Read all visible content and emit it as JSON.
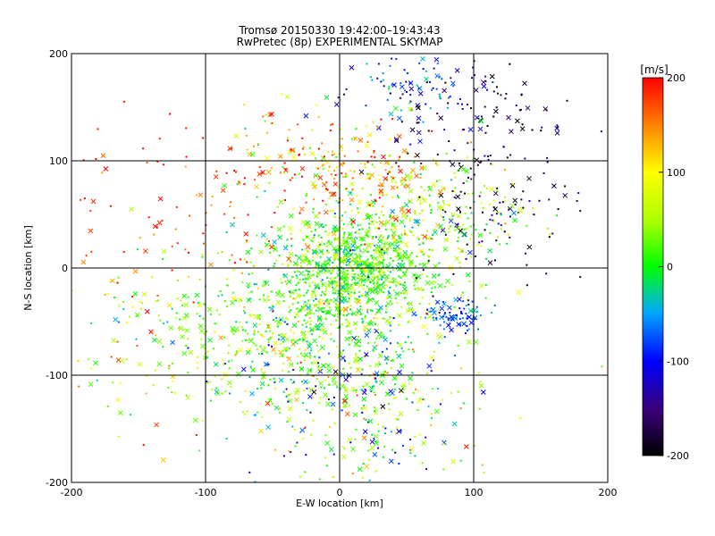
{
  "chart_data": {
    "type": "scatter",
    "title": "Tromsø 20150330 19:42:00–19:43:43",
    "subtitle": "RwPretec (8p) EXPERIMENTAL SKYMAP",
    "xlabel": "E-W location [km]",
    "ylabel": "N-S location [km]",
    "xlim": [
      -200,
      200
    ],
    "ylim": [
      -200,
      200
    ],
    "xticks": [
      -200,
      -100,
      0,
      100,
      200
    ],
    "yticks": [
      -200,
      -100,
      0,
      100,
      200
    ],
    "grid": true,
    "colorbar": {
      "label": "[m/s]",
      "min": -200,
      "max": 200,
      "ticks": [
        200,
        100,
        0,
        -100,
        -200
      ]
    },
    "markers": [
      "dot",
      "cross"
    ],
    "clusters": [
      {
        "x": 10,
        "y": 0,
        "sx": 30,
        "sy": 28,
        "n": 900,
        "v": 20,
        "sv": 40
      },
      {
        "x": -40,
        "y": -60,
        "sx": 55,
        "sy": 35,
        "n": 550,
        "v": 30,
        "sv": 45
      },
      {
        "x": 15,
        "y": -120,
        "sx": 40,
        "sy": 45,
        "n": 350,
        "v": 15,
        "sv": 90
      },
      {
        "x": 50,
        "y": 165,
        "sx": 25,
        "sy": 20,
        "n": 90,
        "v": -90,
        "sv": 40
      },
      {
        "x": 110,
        "y": 140,
        "sx": 30,
        "sy": 30,
        "n": 90,
        "v": -170,
        "sv": 35
      },
      {
        "x": 110,
        "y": 60,
        "sx": 40,
        "sy": 40,
        "n": 110,
        "v": -170,
        "sv": 30
      },
      {
        "x": 70,
        "y": 50,
        "sx": 35,
        "sy": 30,
        "n": 220,
        "v": 40,
        "sv": 40
      },
      {
        "x": 88,
        "y": -45,
        "sx": 12,
        "sy": 8,
        "n": 80,
        "v": -80,
        "sv": 25
      },
      {
        "x": -110,
        "y": 60,
        "sx": 55,
        "sy": 45,
        "n": 110,
        "v": 180,
        "sv": 30
      },
      {
        "x": -20,
        "y": 100,
        "sx": 35,
        "sy": 25,
        "n": 120,
        "v": 120,
        "sv": 70
      },
      {
        "x": -150,
        "y": -80,
        "sx": 30,
        "sy": 60,
        "n": 60,
        "v": 100,
        "sv": 80
      },
      {
        "x": 20,
        "y": 80,
        "sx": 25,
        "sy": 25,
        "n": 120,
        "v": 150,
        "sv": 50
      }
    ]
  }
}
